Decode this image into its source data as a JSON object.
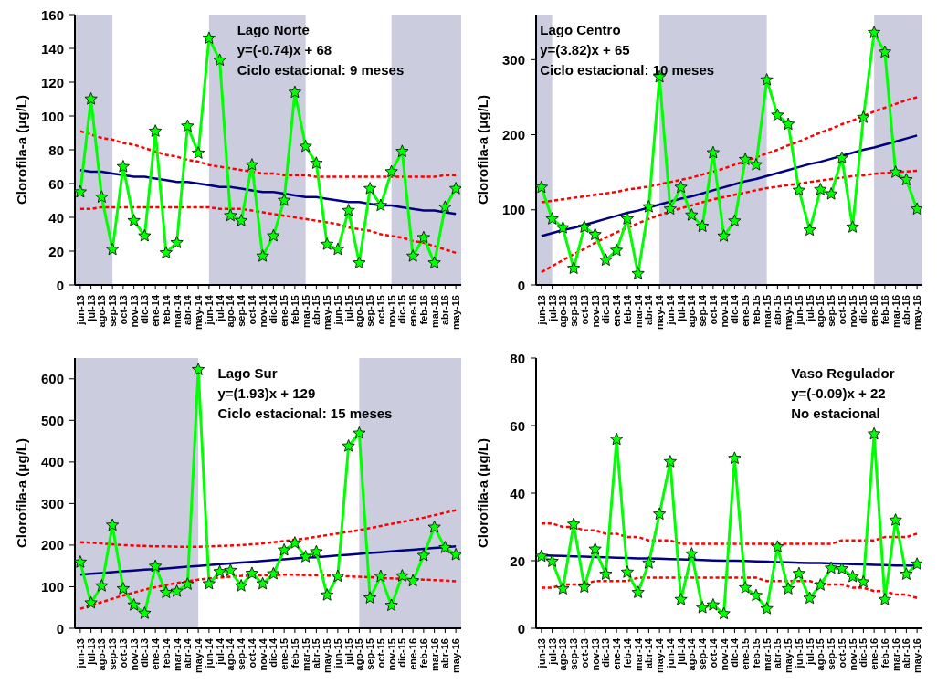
{
  "chart_data": [
    {
      "type": "line",
      "title": "Lago Norte",
      "annotations": [
        "y=(-0.74)x + 68",
        "Ciclo estacional: 9 meses"
      ],
      "ylabel": "Clorofila-a (μg/L)",
      "categories": [
        "jun-13",
        "jul-13",
        "ago-13",
        "sep-13",
        "oct-13",
        "nov-13",
        "dic-13",
        "ene-14",
        "feb-14",
        "mar-14",
        "abr-14",
        "may-14",
        "jun-14",
        "jul-14",
        "ago-14",
        "sep-14",
        "oct-14",
        "nov-14",
        "dic-14",
        "ene-15",
        "feb-15",
        "mar-15",
        "abr-15",
        "may-15",
        "jun-15",
        "jul-15",
        "ago-15",
        "sep-15",
        "oct-15",
        "nov-15",
        "dic-15",
        "ene-16",
        "feb-16",
        "mar-16",
        "abr-16",
        "may-16"
      ],
      "ylim": [
        0,
        160
      ],
      "yticks": [
        0,
        20,
        40,
        60,
        80,
        100,
        120,
        140,
        160
      ],
      "bands": [
        {
          "axis": "x",
          "from": "jun-13",
          "to": "sep-13",
          "color": "#ccccdf"
        },
        {
          "axis": "x",
          "from": "jun-14",
          "to": "mar-15",
          "color": "#ccccdf"
        },
        {
          "axis": "x",
          "from": "nov-15",
          "to": "may-16",
          "color": "#ccccdf"
        }
      ],
      "series": [
        {
          "type": "line",
          "color": "#ff0000",
          "line_style": "dashed",
          "marker": "none",
          "values": [
            91,
            89,
            87,
            86,
            84,
            83,
            81,
            79,
            77,
            76,
            74,
            73,
            71,
            70,
            69,
            68,
            67,
            66,
            66,
            65,
            65,
            65,
            64,
            64,
            64,
            64,
            64,
            64,
            64,
            64,
            64,
            64,
            64,
            64,
            65,
            65
          ]
        },
        {
          "type": "line",
          "color": "#ff0000",
          "line_style": "dashed",
          "marker": "none",
          "values": [
            45,
            45,
            46,
            46,
            46,
            46,
            46,
            46,
            46,
            46,
            46,
            46,
            46,
            45,
            45,
            45,
            44,
            43,
            42,
            41,
            40,
            39,
            38,
            37,
            36,
            34,
            33,
            32,
            30,
            29,
            28,
            26,
            25,
            23,
            21,
            19
          ]
        },
        {
          "type": "line",
          "color": "#000080",
          "line_style": "solid",
          "marker": "none",
          "values": [
            68,
            67,
            67,
            66,
            65,
            64,
            64,
            63,
            62,
            61,
            61,
            60,
            59,
            58,
            58,
            57,
            56,
            55,
            55,
            54,
            53,
            52,
            52,
            51,
            50,
            49,
            49,
            48,
            47,
            47,
            46,
            45,
            44,
            44,
            43,
            42
          ]
        },
        {
          "type": "line",
          "color": "#00ff00",
          "line_style": "solid",
          "marker": "star",
          "values": [
            55,
            110,
            52,
            21,
            70,
            38,
            29,
            91,
            19,
            25,
            94,
            78,
            146,
            133,
            41,
            38,
            71,
            17,
            29,
            50,
            114,
            82,
            72,
            24,
            21,
            44,
            13,
            57,
            47,
            67,
            79,
            17,
            28,
            13,
            46,
            57
          ]
        }
      ]
    },
    {
      "type": "line",
      "title": "Lago Centro",
      "annotations": [
        "y=(3.82)x + 65",
        "Ciclo estacional: 10 meses"
      ],
      "ylabel": "Clorofila-a (μg/L)",
      "categories": [
        "jun-13",
        "jul-13",
        "ago-13",
        "sep-13",
        "oct-13",
        "nov-13",
        "dic-13",
        "ene-14",
        "feb-14",
        "mar-14",
        "abr-14",
        "may-14",
        "jun-14",
        "jul-14",
        "ago-14",
        "sep-14",
        "oct-14",
        "nov-14",
        "dic-14",
        "ene-15",
        "feb-15",
        "mar-15",
        "abr-15",
        "may-15",
        "jun-15",
        "jul-15",
        "ago-15",
        "sep-15",
        "oct-15",
        "nov-15",
        "dic-15",
        "ene-16",
        "feb-16",
        "mar-16",
        "abr-16",
        "may-16"
      ],
      "ylim": [
        0,
        360
      ],
      "yticks": [
        0,
        100,
        200,
        300
      ],
      "bands": [
        {
          "axis": "x",
          "from": "jun-13",
          "to": "jul-13",
          "color": "#ccccdf"
        },
        {
          "axis": "x",
          "from": "may-14",
          "to": "mar-15",
          "color": "#ccccdf"
        },
        {
          "axis": "x",
          "from": "ene-16",
          "to": "may-16",
          "color": "#ccccdf"
        }
      ],
      "series": [
        {
          "type": "line",
          "color": "#ff0000",
          "line_style": "dashed",
          "marker": "none",
          "values": [
            110,
            112,
            114,
            116,
            118,
            120,
            122,
            124,
            127,
            129,
            131,
            134,
            137,
            140,
            143,
            147,
            151,
            155,
            160,
            165,
            170,
            175,
            180,
            186,
            191,
            197,
            203,
            208,
            214,
            219,
            225,
            231,
            236,
            241,
            246,
            250
          ]
        },
        {
          "type": "line",
          "color": "#ff0000",
          "line_style": "dashed",
          "marker": "none",
          "values": [
            17,
            25,
            33,
            41,
            48,
            56,
            63,
            70,
            76,
            82,
            88,
            93,
            98,
            102,
            106,
            110,
            114,
            117,
            120,
            123,
            126,
            129,
            131,
            133,
            135,
            137,
            139,
            141,
            143,
            145,
            146,
            148,
            149,
            150,
            151,
            152
          ]
        },
        {
          "type": "line",
          "color": "#000080",
          "line_style": "solid",
          "marker": "none",
          "values": [
            65,
            69,
            73,
            76,
            80,
            84,
            88,
            92,
            96,
            99,
            103,
            107,
            111,
            115,
            118,
            122,
            126,
            130,
            134,
            138,
            141,
            145,
            149,
            153,
            157,
            161,
            164,
            168,
            172,
            176,
            180,
            183,
            187,
            191,
            195,
            199
          ]
        },
        {
          "type": "line",
          "color": "#00ff00",
          "line_style": "solid",
          "marker": "star",
          "values": [
            130,
            88,
            76,
            22,
            77,
            67,
            33,
            46,
            88,
            15,
            104,
            277,
            101,
            130,
            93,
            78,
            176,
            65,
            85,
            167,
            160,
            273,
            226,
            214,
            126,
            73,
            127,
            121,
            169,
            77,
            223,
            336,
            310,
            150,
            140,
            101
          ]
        }
      ]
    },
    {
      "type": "line",
      "title": "Lago Sur",
      "annotations": [
        "y=(1.93)x + 129",
        "Ciclo estacional: 15 meses"
      ],
      "ylabel": "Clorofila-a (μg/L)",
      "categories": [
        "jun-13",
        "jul-13",
        "ago-13",
        "sep-13",
        "oct-13",
        "nov-13",
        "dic-13",
        "ene-14",
        "feb-14",
        "mar-14",
        "abr-14",
        "may-14",
        "jun-14",
        "jul-14",
        "ago-14",
        "sep-14",
        "oct-14",
        "nov-14",
        "dic-14",
        "ene-15",
        "feb-15",
        "mar-15",
        "abr-15",
        "may-15",
        "jun-15",
        "jul-15",
        "ago-15",
        "sep-15",
        "oct-15",
        "nov-15",
        "dic-15",
        "ene-16",
        "feb-16",
        "mar-16",
        "abr-16",
        "may-16"
      ],
      "ylim": [
        0,
        650
      ],
      "yticks": [
        0,
        100,
        200,
        300,
        400,
        500,
        600
      ],
      "bands": [
        {
          "axis": "x",
          "from": "jun-13",
          "to": "may-14",
          "color": "#ccccdf"
        },
        {
          "axis": "x",
          "from": "ago-15",
          "to": "may-16",
          "color": "#ccccdf"
        }
      ],
      "series": [
        {
          "type": "line",
          "color": "#ff0000",
          "line_style": "dashed",
          "marker": "none",
          "values": [
            207,
            206,
            204,
            202,
            200,
            199,
            198,
            197,
            197,
            196,
            196,
            196,
            197,
            198,
            199,
            200,
            202,
            204,
            207,
            210,
            213,
            216,
            220,
            224,
            228,
            232,
            236,
            241,
            246,
            251,
            256,
            261,
            266,
            272,
            278,
            284
          ]
        },
        {
          "type": "line",
          "color": "#ff0000",
          "line_style": "dashed",
          "marker": "none",
          "values": [
            47,
            55,
            63,
            71,
            79,
            86,
            93,
            99,
            104,
            109,
            113,
            117,
            120,
            122,
            124,
            126,
            127,
            128,
            128,
            129,
            129,
            128,
            128,
            127,
            126,
            125,
            124,
            123,
            121,
            120,
            119,
            118,
            117,
            116,
            115,
            113
          ]
        },
        {
          "type": "line",
          "color": "#000080",
          "line_style": "solid",
          "marker": "none",
          "values": [
            129,
            131,
            133,
            135,
            137,
            139,
            141,
            142,
            144,
            146,
            148,
            150,
            152,
            154,
            156,
            158,
            160,
            162,
            164,
            166,
            168,
            170,
            171,
            173,
            175,
            177,
            179,
            181,
            183,
            185,
            187,
            189,
            191,
            193,
            195,
            197
          ]
        },
        {
          "type": "line",
          "color": "#00ff00",
          "line_style": "solid",
          "marker": "star",
          "values": [
            159,
            61,
            102,
            248,
            95,
            56,
            36,
            149,
            86,
            89,
            106,
            622,
            107,
            136,
            139,
            102,
            132,
            107,
            131,
            188,
            205,
            172,
            184,
            80,
            125,
            438,
            469,
            73,
            125,
            55,
            126,
            114,
            175,
            243,
            194,
            177
          ]
        }
      ]
    },
    {
      "type": "line",
      "title": "Vaso Regulador",
      "annotations": [
        "y=(-0.09)x + 22",
        "No estacional"
      ],
      "ylabel": "Clorofila-a (μg/L)",
      "categories": [
        "jun-13",
        "jul-13",
        "ago-13",
        "sep-13",
        "oct-13",
        "nov-13",
        "dic-13",
        "ene-14",
        "feb-14",
        "mar-14",
        "abr-14",
        "may-14",
        "jun-14",
        "jul-14",
        "ago-14",
        "sep-14",
        "oct-14",
        "nov-14",
        "dic-14",
        "ene-15",
        "feb-15",
        "mar-15",
        "abr-15",
        "may-15",
        "jun-15",
        "jul-15",
        "ago-15",
        "sep-15",
        "oct-15",
        "nov-15",
        "dic-15",
        "ene-16",
        "feb-16",
        "mar-16",
        "abr-16",
        "may-16"
      ],
      "ylim": [
        0,
        80
      ],
      "yticks": [
        0,
        20,
        40,
        60,
        80
      ],
      "series": [
        {
          "type": "line",
          "color": "#ff0000",
          "line_style": "dashed",
          "marker": "none",
          "values": [
            31,
            31,
            30,
            30,
            29,
            29,
            28,
            28,
            27,
            27,
            26,
            26,
            26,
            25,
            25,
            25,
            25,
            25,
            25,
            25,
            25,
            25,
            25,
            25,
            25,
            25,
            25,
            25,
            26,
            26,
            26,
            26,
            27,
            27,
            27,
            28
          ]
        },
        {
          "type": "line",
          "color": "#ff0000",
          "line_style": "dashed",
          "marker": "none",
          "values": [
            12,
            12,
            13,
            13,
            13,
            14,
            14,
            14,
            14,
            15,
            15,
            15,
            15,
            15,
            15,
            15,
            15,
            15,
            15,
            15,
            15,
            14,
            14,
            14,
            14,
            14,
            13,
            13,
            13,
            12,
            12,
            11,
            11,
            10,
            10,
            9
          ]
        },
        {
          "type": "line",
          "color": "#000080",
          "line_style": "solid",
          "marker": "none",
          "values": [
            21.6,
            21.5,
            21.4,
            21.3,
            21.2,
            21.1,
            21.0,
            20.9,
            20.8,
            20.7,
            20.7,
            20.6,
            20.5,
            20.4,
            20.3,
            20.2,
            20.1,
            20.0,
            20.0,
            19.9,
            19.8,
            19.7,
            19.6,
            19.5,
            19.4,
            19.3,
            19.3,
            19.2,
            19.1,
            19.0,
            18.9,
            18.8,
            18.7,
            18.6,
            18.6,
            18.5
          ]
        },
        {
          "type": "line",
          "color": "#00ff00",
          "line_style": "solid",
          "marker": "star",
          "values": [
            21.3,
            19.8,
            11.7,
            30.8,
            12.2,
            23.4,
            16,
            55.9,
            16.6,
            10.6,
            19.3,
            33.8,
            49.3,
            8.5,
            22,
            6.1,
            6.9,
            4.3,
            50.3,
            12,
            9.7,
            5.8,
            24.1,
            11.7,
            16.2,
            8.9,
            12.8,
            17.8,
            17.6,
            15.3,
            13.7,
            57.5,
            8.5,
            32,
            16,
            19
          ]
        }
      ]
    }
  ]
}
